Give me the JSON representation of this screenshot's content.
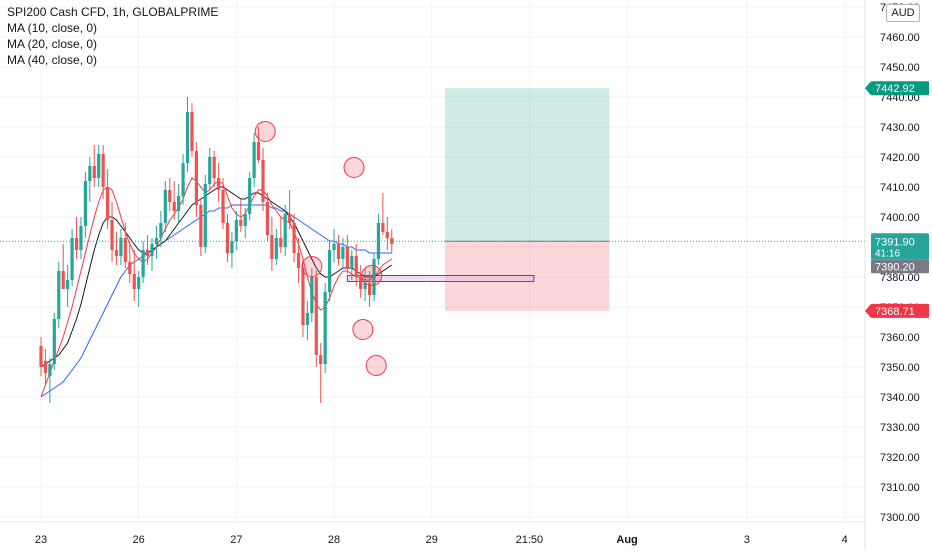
{
  "legend": {
    "symbol": "SPI200 Cash CFD, 1h, GLOBALPRIME",
    "ma10": "MA (10, close, 0)",
    "ma20": "MA (20, close, 0)",
    "ma40": "MA (40, close, 0)"
  },
  "currency": "AUD",
  "chart_data": {
    "type": "candlestick",
    "price_axis": {
      "ticks": [
        7300,
        7310,
        7320,
        7330,
        7340,
        7350,
        7360,
        7370,
        7380,
        7390,
        7400,
        7410,
        7420,
        7430,
        7440,
        7450,
        7460,
        7470
      ],
      "tick_labels": [
        "7300.00",
        "7310.00",
        "7320.00",
        "7330.00",
        "7340.00",
        "7350.00",
        "7360.00",
        "7370.00",
        "7380.00",
        "7390.00",
        "7400.00",
        "7410.00",
        "7420.00",
        "7430.00",
        "7440.00",
        "7450.00",
        "7460.00",
        "7470.00"
      ],
      "range": [
        7296,
        7472
      ]
    },
    "time_axis": {
      "ticks": [
        {
          "label": "23",
          "bar": 0
        },
        {
          "label": "26",
          "bar": 22
        },
        {
          "label": "27",
          "bar": 44
        },
        {
          "label": "28",
          "bar": 66
        },
        {
          "label": "29",
          "bar": 88
        },
        {
          "label": "21:50",
          "bar": 110
        },
        {
          "label": "Aug",
          "bar": 132,
          "bold": true
        },
        {
          "label": "3",
          "bar": 159
        },
        {
          "label": "4",
          "bar": 181
        }
      ]
    },
    "price_labels": [
      {
        "text": "7442.92",
        "value": 7442.92,
        "color": "#089981"
      },
      {
        "text": "7391.90",
        "value": 7391.9,
        "color": "#26a69a"
      },
      {
        "text": "41:16",
        "value": 7388.5,
        "color": "#26a69a"
      },
      {
        "text": "7390.20",
        "value": 7390.2,
        "color": "#787b86"
      },
      {
        "text": "7368.71",
        "value": 7368.71,
        "color": "#f23645"
      }
    ],
    "position": {
      "entry": 7391.9,
      "target": 7442.92,
      "stop": 7368.71,
      "start_bar": 91,
      "end_bar": 128
    },
    "zone": {
      "top": 7380.5,
      "bottom": 7378.5,
      "start_bar": 69,
      "end_bar": 111
    },
    "circles": [
      {
        "bar": 50.5,
        "price": 7428.5
      },
      {
        "bar": 70.5,
        "price": 7416.5
      },
      {
        "bar": 61.0,
        "price": 7383.5
      },
      {
        "bar": 72.5,
        "price": 7362.5
      },
      {
        "bar": 74.5,
        "price": 7380.5
      },
      {
        "bar": 75.5,
        "price": 7350.5
      }
    ],
    "candles": [
      {
        "o": 7357,
        "h": 7360,
        "l": 7347,
        "c": 7350
      },
      {
        "o": 7352,
        "h": 7356,
        "l": 7344,
        "c": 7348
      },
      {
        "o": 7347,
        "h": 7353,
        "l": 7338,
        "c": 7351
      },
      {
        "o": 7351,
        "h": 7368,
        "l": 7349,
        "c": 7366
      },
      {
        "o": 7366,
        "h": 7385,
        "l": 7363,
        "c": 7382
      },
      {
        "o": 7382,
        "h": 7391,
        "l": 7377,
        "c": 7376
      },
      {
        "o": 7376,
        "h": 7384,
        "l": 7370,
        "c": 7379
      },
      {
        "o": 7379,
        "h": 7396,
        "l": 7377,
        "c": 7393
      },
      {
        "o": 7393,
        "h": 7400,
        "l": 7386,
        "c": 7389
      },
      {
        "o": 7389,
        "h": 7400,
        "l": 7386,
        "c": 7397
      },
      {
        "o": 7397,
        "h": 7415,
        "l": 7393,
        "c": 7412
      },
      {
        "o": 7412,
        "h": 7420,
        "l": 7405,
        "c": 7417
      },
      {
        "o": 7417,
        "h": 7424,
        "l": 7410,
        "c": 7413
      },
      {
        "o": 7413,
        "h": 7424,
        "l": 7410,
        "c": 7421
      },
      {
        "o": 7421,
        "h": 7424,
        "l": 7406,
        "c": 7410
      },
      {
        "o": 7410,
        "h": 7416,
        "l": 7396,
        "c": 7399
      },
      {
        "o": 7399,
        "h": 7405,
        "l": 7385,
        "c": 7389
      },
      {
        "o": 7389,
        "h": 7395,
        "l": 7384,
        "c": 7387
      },
      {
        "o": 7387,
        "h": 7396,
        "l": 7384,
        "c": 7393
      },
      {
        "o": 7393,
        "h": 7398,
        "l": 7383,
        "c": 7385
      },
      {
        "o": 7385,
        "h": 7392,
        "l": 7378,
        "c": 7381
      },
      {
        "o": 7381,
        "h": 7389,
        "l": 7372,
        "c": 7376
      },
      {
        "o": 7376,
        "h": 7382,
        "l": 7370,
        "c": 7380
      },
      {
        "o": 7380,
        "h": 7392,
        "l": 7378,
        "c": 7389
      },
      {
        "o": 7389,
        "h": 7394,
        "l": 7384,
        "c": 7387
      },
      {
        "o": 7387,
        "h": 7393,
        "l": 7382,
        "c": 7391
      },
      {
        "o": 7391,
        "h": 7397,
        "l": 7386,
        "c": 7393
      },
      {
        "o": 7393,
        "h": 7402,
        "l": 7390,
        "c": 7398
      },
      {
        "o": 7398,
        "h": 7412,
        "l": 7395,
        "c": 7409
      },
      {
        "o": 7409,
        "h": 7413,
        "l": 7402,
        "c": 7405
      },
      {
        "o": 7405,
        "h": 7412,
        "l": 7399,
        "c": 7402
      },
      {
        "o": 7402,
        "h": 7411,
        "l": 7398,
        "c": 7407
      },
      {
        "o": 7407,
        "h": 7421,
        "l": 7404,
        "c": 7418
      },
      {
        "o": 7418,
        "h": 7440,
        "l": 7415,
        "c": 7435
      },
      {
        "o": 7435,
        "h": 7438,
        "l": 7420,
        "c": 7422
      },
      {
        "o": 7422,
        "h": 7425,
        "l": 7400,
        "c": 7404
      },
      {
        "o": 7404,
        "h": 7406,
        "l": 7387,
        "c": 7390
      },
      {
        "o": 7390,
        "h": 7414,
        "l": 7388,
        "c": 7411
      },
      {
        "o": 7411,
        "h": 7423,
        "l": 7409,
        "c": 7420
      },
      {
        "o": 7420,
        "h": 7422,
        "l": 7410,
        "c": 7413
      },
      {
        "o": 7413,
        "h": 7418,
        "l": 7405,
        "c": 7409
      },
      {
        "o": 7409,
        "h": 7413,
        "l": 7396,
        "c": 7398
      },
      {
        "o": 7398,
        "h": 7401,
        "l": 7385,
        "c": 7388
      },
      {
        "o": 7388,
        "h": 7395,
        "l": 7383,
        "c": 7392
      },
      {
        "o": 7392,
        "h": 7402,
        "l": 7389,
        "c": 7399
      },
      {
        "o": 7399,
        "h": 7406,
        "l": 7395,
        "c": 7397
      },
      {
        "o": 7397,
        "h": 7403,
        "l": 7393,
        "c": 7401
      },
      {
        "o": 7401,
        "h": 7415,
        "l": 7399,
        "c": 7413
      },
      {
        "o": 7413,
        "h": 7428,
        "l": 7410,
        "c": 7425
      },
      {
        "o": 7425,
        "h": 7430,
        "l": 7418,
        "c": 7419
      },
      {
        "o": 7419,
        "h": 7423,
        "l": 7402,
        "c": 7405
      },
      {
        "o": 7405,
        "h": 7408,
        "l": 7392,
        "c": 7394
      },
      {
        "o": 7394,
        "h": 7400,
        "l": 7382,
        "c": 7386
      },
      {
        "o": 7386,
        "h": 7396,
        "l": 7384,
        "c": 7393
      },
      {
        "o": 7393,
        "h": 7400,
        "l": 7388,
        "c": 7390
      },
      {
        "o": 7390,
        "h": 7404,
        "l": 7387,
        "c": 7401
      },
      {
        "o": 7401,
        "h": 7409,
        "l": 7396,
        "c": 7398
      },
      {
        "o": 7398,
        "h": 7401,
        "l": 7385,
        "c": 7388
      },
      {
        "o": 7388,
        "h": 7393,
        "l": 7378,
        "c": 7383
      },
      {
        "o": 7383,
        "h": 7386,
        "l": 7360,
        "c": 7364
      },
      {
        "o": 7364,
        "h": 7372,
        "l": 7359,
        "c": 7368
      },
      {
        "o": 7368,
        "h": 7383,
        "l": 7365,
        "c": 7380
      },
      {
        "o": 7380,
        "h": 7382,
        "l": 7350,
        "c": 7354
      },
      {
        "o": 7354,
        "h": 7358,
        "l": 7338,
        "c": 7351
      },
      {
        "o": 7351,
        "h": 7378,
        "l": 7348,
        "c": 7375
      },
      {
        "o": 7375,
        "h": 7392,
        "l": 7372,
        "c": 7389
      },
      {
        "o": 7389,
        "h": 7396,
        "l": 7385,
        "c": 7391
      },
      {
        "o": 7391,
        "h": 7394,
        "l": 7384,
        "c": 7386
      },
      {
        "o": 7386,
        "h": 7393,
        "l": 7383,
        "c": 7390
      },
      {
        "o": 7390,
        "h": 7394,
        "l": 7381,
        "c": 7383
      },
      {
        "o": 7383,
        "h": 7389,
        "l": 7379,
        "c": 7387
      },
      {
        "o": 7387,
        "h": 7391,
        "l": 7377,
        "c": 7380
      },
      {
        "o": 7380,
        "h": 7384,
        "l": 7373,
        "c": 7376
      },
      {
        "o": 7376,
        "h": 7383,
        "l": 7372,
        "c": 7378
      },
      {
        "o": 7378,
        "h": 7382,
        "l": 7370,
        "c": 7374
      },
      {
        "o": 7374,
        "h": 7388,
        "l": 7372,
        "c": 7386
      },
      {
        "o": 7386,
        "h": 7401,
        "l": 7384,
        "c": 7398
      },
      {
        "o": 7398,
        "h": 7408,
        "l": 7394,
        "c": 7395
      },
      {
        "o": 7395,
        "h": 7400,
        "l": 7389,
        "c": 7393
      },
      {
        "o": 7393,
        "h": 7396,
        "l": 7388,
        "c": 7391
      }
    ],
    "ma10": {
      "color": "#f23645",
      "values": [
        7340,
        7344,
        7348,
        7352,
        7356,
        7360,
        7365,
        7370,
        7376,
        7382,
        7388,
        7394,
        7400,
        7405,
        7409,
        7410,
        7409,
        7405,
        7400,
        7395,
        7391,
        7388,
        7386,
        7385,
        7386,
        7388,
        7390,
        7393,
        7396,
        7399,
        7401,
        7403,
        7406,
        7410,
        7413,
        7412,
        7410,
        7408,
        7409,
        7411,
        7412,
        7411,
        7407,
        7403,
        7401,
        7400,
        7401,
        7404,
        7407,
        7409,
        7409,
        7407,
        7404,
        7402,
        7400,
        7399,
        7398,
        7395,
        7391,
        7386,
        7380,
        7375,
        7371,
        7369,
        7370,
        7373,
        7377,
        7380,
        7382,
        7382,
        7381,
        7380,
        7380,
        7379,
        7379,
        7380,
        7382,
        7384,
        7385,
        7386
      ]
    },
    "ma20": {
      "color": "#131722",
      "values": [
        7350,
        7351,
        7352,
        7353,
        7354,
        7356,
        7358,
        7362,
        7366,
        7371,
        7377,
        7383,
        7389,
        7394,
        7398,
        7400,
        7400,
        7399,
        7397,
        7395,
        7393,
        7391,
        7389,
        7388,
        7388,
        7389,
        7390,
        7391,
        7392,
        7394,
        7396,
        7398,
        7400,
        7402,
        7404,
        7405,
        7406,
        7407,
        7408,
        7409,
        7410,
        7410,
        7409,
        7408,
        7407,
        7406,
        7406,
        7407,
        7408,
        7408,
        7407,
        7406,
        7405,
        7404,
        7403,
        7402,
        7400,
        7398,
        7395,
        7392,
        7389,
        7386,
        7383,
        7381,
        7380,
        7380,
        7381,
        7382,
        7383,
        7383,
        7383,
        7382,
        7381,
        7380,
        7380,
        7380,
        7381,
        7382,
        7383,
        7384
      ]
    },
    "ma40": {
      "color": "#2962ff",
      "values": [
        7340,
        7341,
        7342,
        7343,
        7344,
        7345,
        7347,
        7349,
        7351,
        7353,
        7356,
        7359,
        7362,
        7365,
        7368,
        7371,
        7374,
        7377,
        7380,
        7382,
        7384,
        7385,
        7386,
        7387,
        7388,
        7389,
        7390,
        7391,
        7392,
        7393,
        7394,
        7395,
        7396,
        7397,
        7398,
        7399,
        7400,
        7401,
        7402,
        7402,
        7403,
        7403,
        7403,
        7404,
        7404,
        7404,
        7404,
        7404,
        7404,
        7404,
        7404,
        7404,
        7403,
        7403,
        7402,
        7402,
        7401,
        7400,
        7399,
        7398,
        7397,
        7396,
        7395,
        7394,
        7393,
        7392,
        7392,
        7391,
        7391,
        7390,
        7390,
        7389,
        7389,
        7389,
        7388,
        7388,
        7388,
        7388,
        7388,
        7388
      ]
    }
  }
}
